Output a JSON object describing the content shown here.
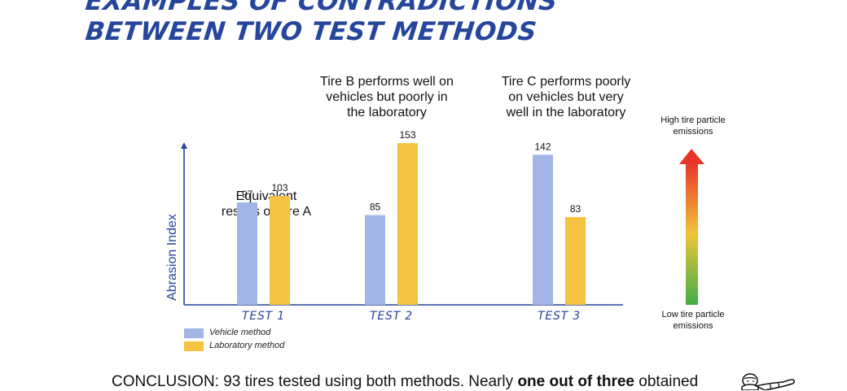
{
  "title": {
    "line1": "EXAMPLES OF CONTRADICTIONS",
    "line2": "BETWEEN TWO TEST METHODS"
  },
  "annotations": {
    "tire_a": "Equivalent\nresults on tire A",
    "tire_b": "Tire B performs well on\nvehicles but poorly in\nthe laboratory",
    "tire_c": "Tire C performs poorly\non vehicles but very\nwell in the laboratory"
  },
  "emissions_scale": {
    "high_label": "High tire particle\nemissions",
    "low_label": "Low tire particle\nemissions",
    "colors": [
      "#e8352a",
      "#f0c43a",
      "#3fae49"
    ]
  },
  "conclusion": {
    "prefix": "CONCLUSION: 93 tires tested using both methods. Nearly ",
    "bold": "one out of three",
    "suffix": " obtained"
  },
  "mascot_icon": "michelin-man-icon",
  "colors": {
    "title": "#26469c",
    "axis": "#26469c",
    "vehicle": "#a3b5e6",
    "laboratory": "#f5c242"
  },
  "chart_data": {
    "type": "bar",
    "categories": [
      "TEST 1",
      "TEST 2",
      "TEST 3"
    ],
    "ylabel": "Abrasion Index",
    "xlabel": "",
    "ylim": [
      0,
      170
    ],
    "grid": false,
    "legend_position": "bottom-left",
    "series": [
      {
        "name": "Vehicle method",
        "values": [
          97,
          85,
          142
        ],
        "color": "#a3b5e6"
      },
      {
        "name": "Laboratory method",
        "values": [
          103,
          153,
          83
        ],
        "color": "#f5c242"
      }
    ]
  }
}
